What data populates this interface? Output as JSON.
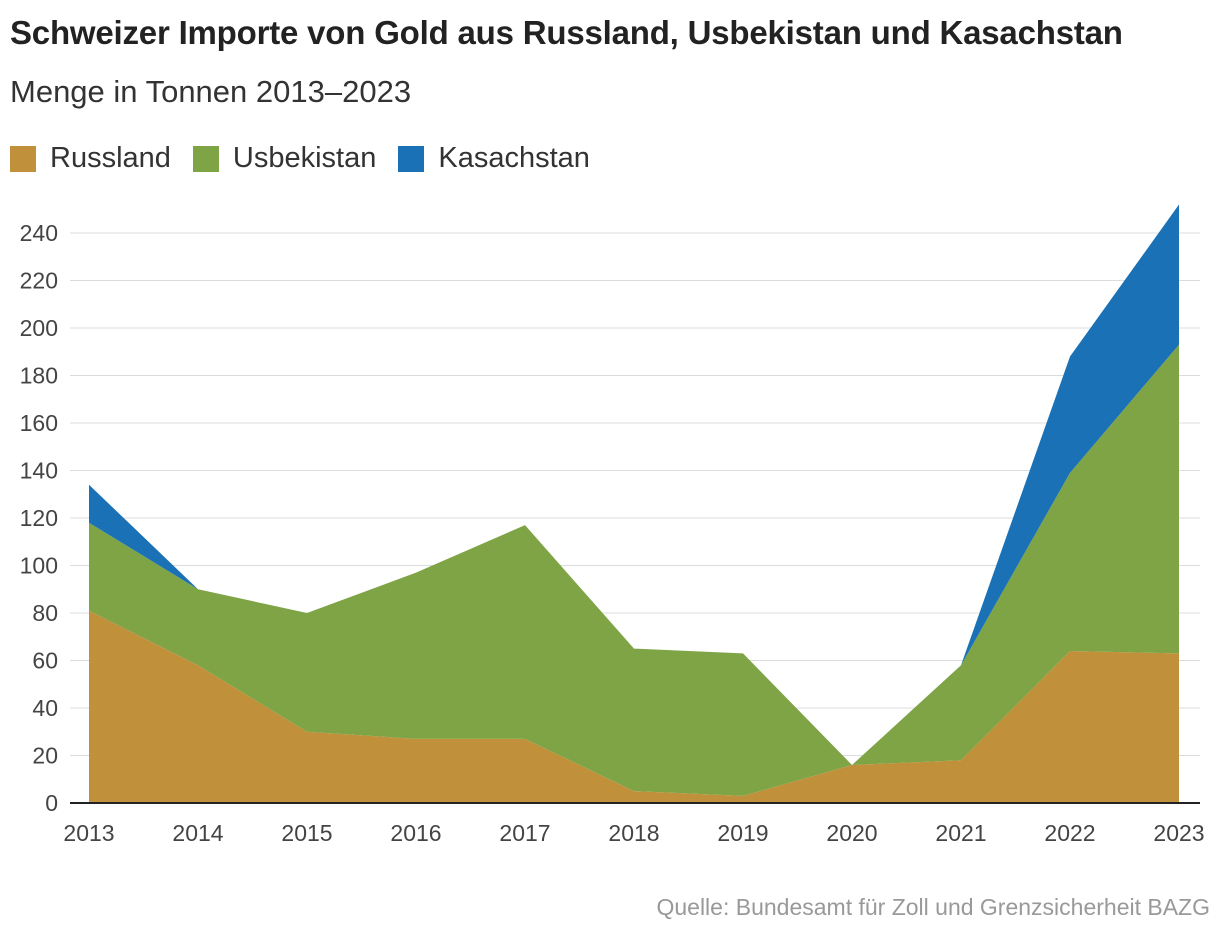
{
  "title": "Schweizer Importe von Gold aus Russland, Usbekistan und Kasachstan",
  "subtitle": "Menge in Tonnen 2013–2023",
  "source": "Quelle: Bundesamt für Zoll und Grenzsicherheit BAZG",
  "chart_data": {
    "type": "area",
    "stacked": true,
    "title": "Schweizer Importe von Gold aus Russland, Usbekistan und Kasachstan",
    "subtitle": "Menge in Tonnen 2013–2023",
    "xlabel": "",
    "ylabel": "",
    "ylim": [
      0,
      250
    ],
    "yticks": [
      0,
      20,
      40,
      60,
      80,
      100,
      120,
      140,
      160,
      180,
      200,
      220,
      240
    ],
    "grid": true,
    "legend_position": "top-left",
    "categories": [
      "2013",
      "2014",
      "2015",
      "2016",
      "2017",
      "2018",
      "2019",
      "2020",
      "2021",
      "2022",
      "2023"
    ],
    "series": [
      {
        "name": "Russland",
        "color": "#c0913a",
        "values": [
          81,
          58,
          30,
          27,
          27,
          5,
          3,
          16,
          18,
          64,
          63
        ]
      },
      {
        "name": "Usbekistan",
        "color": "#7ea446",
        "values": [
          37,
          32,
          50,
          70,
          90,
          60,
          60,
          0,
          40,
          75,
          130
        ]
      },
      {
        "name": "Kasachstan",
        "color": "#1a71b6",
        "values": [
          16,
          0,
          0,
          0,
          0,
          0,
          0,
          0,
          0,
          49,
          59
        ]
      }
    ]
  }
}
